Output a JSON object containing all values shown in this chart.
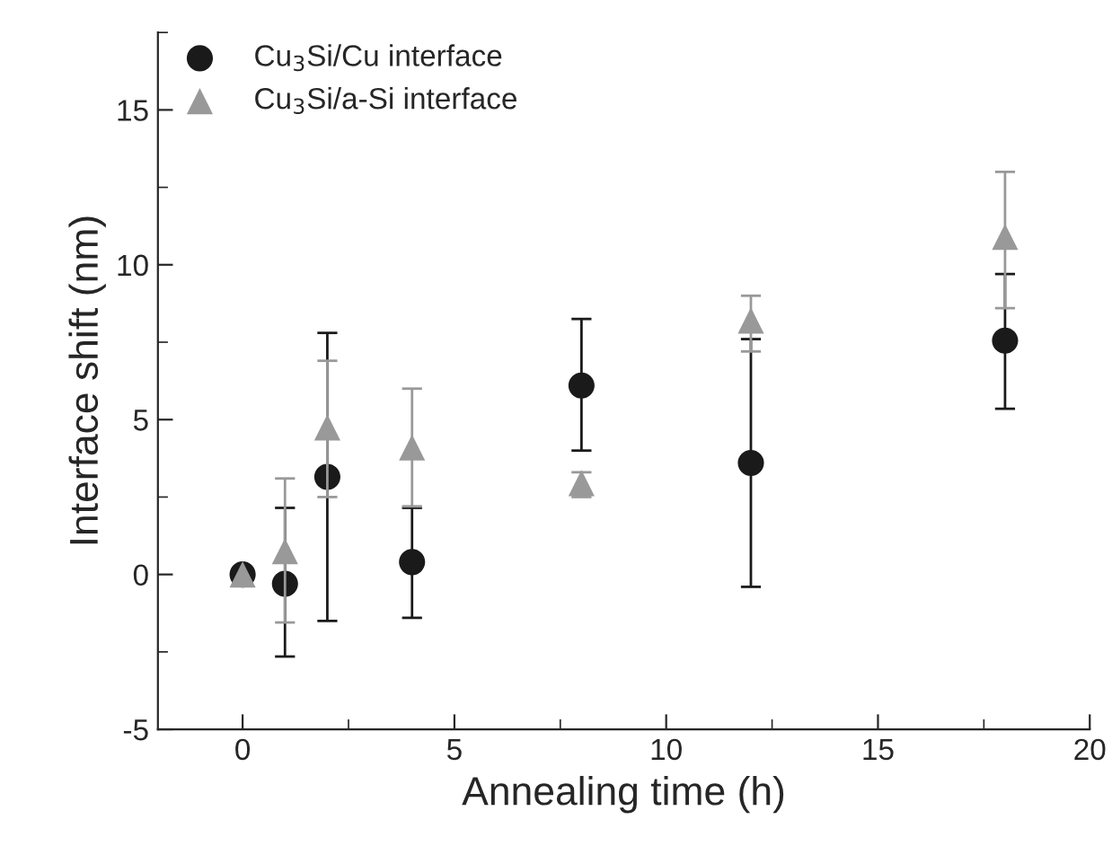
{
  "chart_data": {
    "type": "scatter",
    "xlabel": "Annealing time (h)",
    "ylabel": "Interface shift (nm)",
    "x": [
      0,
      1,
      2,
      4,
      8,
      12,
      18
    ],
    "series": [
      {
        "name": "Cu$_{3}$Si/Cu interface",
        "color": "#1a1a1a",
        "marker": "circle",
        "values": [
          0,
          -0.3,
          3.15,
          0.4,
          6.1,
          3.6,
          7.55
        ],
        "errors": [
          null,
          [
            -2.65,
            2.15
          ],
          [
            -1.5,
            7.8
          ],
          [
            -1.4,
            2.15
          ],
          [
            4.0,
            8.25
          ],
          [
            -0.4,
            7.6
          ],
          [
            5.35,
            9.7
          ]
        ]
      },
      {
        "name": "Cu$_{3}$Si/a-Si interface",
        "color": "#999999",
        "marker": "triangle",
        "values": [
          0,
          0.75,
          4.75,
          4.1,
          2.95,
          8.2,
          10.9
        ],
        "errors": [
          null,
          [
            -1.55,
            3.1
          ],
          [
            2.5,
            6.9
          ],
          [
            2.2,
            6.0
          ],
          [
            2.5,
            3.3
          ],
          [
            7.2,
            9.0
          ],
          [
            8.6,
            13.0
          ]
        ]
      }
    ],
    "xlim": [
      -2,
      20
    ],
    "xticks": [
      0,
      5,
      10,
      15,
      20
    ],
    "ylim": [
      -5,
      17.5
    ],
    "yticks": [
      -5,
      0,
      5,
      10,
      15
    ],
    "grid": false,
    "legend": "top left"
  }
}
